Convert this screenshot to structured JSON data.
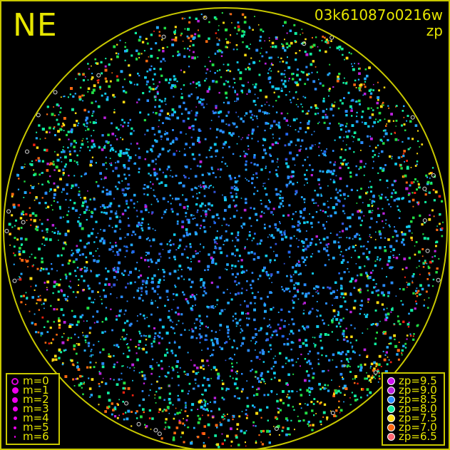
{
  "direction_label": "NE",
  "image_id": "03k61087o0216w",
  "color_quantity": "zp",
  "colors": {
    "frame": "#c8c800",
    "horizon_circle": "#c8c800",
    "text": "#e6e600",
    "background": "#000000"
  },
  "magnitude_legend": [
    {
      "label": "m=0",
      "marker": "open-circle"
    },
    {
      "label": "m=1",
      "marker": "dot"
    },
    {
      "label": "m=2",
      "marker": "dot"
    },
    {
      "label": "m=3",
      "marker": "dot"
    },
    {
      "label": "m=4",
      "marker": "dot"
    },
    {
      "label": "m=5",
      "marker": "dot"
    },
    {
      "label": "m=6",
      "marker": "dot"
    }
  ],
  "zp_legend": [
    {
      "label": "zp=9.5",
      "color": "#cc11ee"
    },
    {
      "label": "zp=9.0",
      "color": "#bb22dd"
    },
    {
      "label": "zp=8.5",
      "color": "#2a8cff"
    },
    {
      "label": "zp=8.0",
      "color": "#11eea0"
    },
    {
      "label": "zp=7.5",
      "color": "#ffdd11"
    },
    {
      "label": "zp=7.0",
      "color": "#ff6a11"
    },
    {
      "label": "zp=6.5",
      "color": "#ff6670"
    }
  ]
}
